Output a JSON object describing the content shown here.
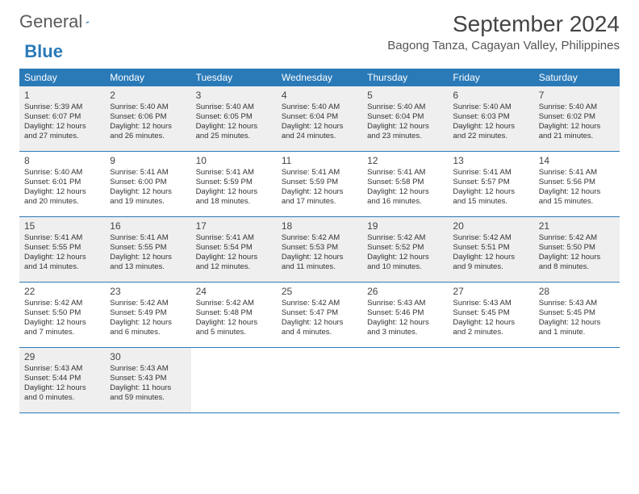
{
  "logo": {
    "text_general": "General",
    "text_blue": "Blue"
  },
  "title": "September 2024",
  "location": "Bagong Tanza, Cagayan Valley, Philippines",
  "colors": {
    "header_bg": "#2a7ab8",
    "header_text": "#ffffff",
    "shaded_bg": "#efefef",
    "border": "#2a7ab8",
    "text": "#333333"
  },
  "day_headers": [
    "Sunday",
    "Monday",
    "Tuesday",
    "Wednesday",
    "Thursday",
    "Friday",
    "Saturday"
  ],
  "weeks": [
    {
      "shaded": true,
      "days": [
        {
          "num": "1",
          "sunrise": "Sunrise: 5:39 AM",
          "sunset": "Sunset: 6:07 PM",
          "day1": "Daylight: 12 hours",
          "day2": "and 27 minutes."
        },
        {
          "num": "2",
          "sunrise": "Sunrise: 5:40 AM",
          "sunset": "Sunset: 6:06 PM",
          "day1": "Daylight: 12 hours",
          "day2": "and 26 minutes."
        },
        {
          "num": "3",
          "sunrise": "Sunrise: 5:40 AM",
          "sunset": "Sunset: 6:05 PM",
          "day1": "Daylight: 12 hours",
          "day2": "and 25 minutes."
        },
        {
          "num": "4",
          "sunrise": "Sunrise: 5:40 AM",
          "sunset": "Sunset: 6:04 PM",
          "day1": "Daylight: 12 hours",
          "day2": "and 24 minutes."
        },
        {
          "num": "5",
          "sunrise": "Sunrise: 5:40 AM",
          "sunset": "Sunset: 6:04 PM",
          "day1": "Daylight: 12 hours",
          "day2": "and 23 minutes."
        },
        {
          "num": "6",
          "sunrise": "Sunrise: 5:40 AM",
          "sunset": "Sunset: 6:03 PM",
          "day1": "Daylight: 12 hours",
          "day2": "and 22 minutes."
        },
        {
          "num": "7",
          "sunrise": "Sunrise: 5:40 AM",
          "sunset": "Sunset: 6:02 PM",
          "day1": "Daylight: 12 hours",
          "day2": "and 21 minutes."
        }
      ]
    },
    {
      "shaded": false,
      "days": [
        {
          "num": "8",
          "sunrise": "Sunrise: 5:40 AM",
          "sunset": "Sunset: 6:01 PM",
          "day1": "Daylight: 12 hours",
          "day2": "and 20 minutes."
        },
        {
          "num": "9",
          "sunrise": "Sunrise: 5:41 AM",
          "sunset": "Sunset: 6:00 PM",
          "day1": "Daylight: 12 hours",
          "day2": "and 19 minutes."
        },
        {
          "num": "10",
          "sunrise": "Sunrise: 5:41 AM",
          "sunset": "Sunset: 5:59 PM",
          "day1": "Daylight: 12 hours",
          "day2": "and 18 minutes."
        },
        {
          "num": "11",
          "sunrise": "Sunrise: 5:41 AM",
          "sunset": "Sunset: 5:59 PM",
          "day1": "Daylight: 12 hours",
          "day2": "and 17 minutes."
        },
        {
          "num": "12",
          "sunrise": "Sunrise: 5:41 AM",
          "sunset": "Sunset: 5:58 PM",
          "day1": "Daylight: 12 hours",
          "day2": "and 16 minutes."
        },
        {
          "num": "13",
          "sunrise": "Sunrise: 5:41 AM",
          "sunset": "Sunset: 5:57 PM",
          "day1": "Daylight: 12 hours",
          "day2": "and 15 minutes."
        },
        {
          "num": "14",
          "sunrise": "Sunrise: 5:41 AM",
          "sunset": "Sunset: 5:56 PM",
          "day1": "Daylight: 12 hours",
          "day2": "and 15 minutes."
        }
      ]
    },
    {
      "shaded": true,
      "days": [
        {
          "num": "15",
          "sunrise": "Sunrise: 5:41 AM",
          "sunset": "Sunset: 5:55 PM",
          "day1": "Daylight: 12 hours",
          "day2": "and 14 minutes."
        },
        {
          "num": "16",
          "sunrise": "Sunrise: 5:41 AM",
          "sunset": "Sunset: 5:55 PM",
          "day1": "Daylight: 12 hours",
          "day2": "and 13 minutes."
        },
        {
          "num": "17",
          "sunrise": "Sunrise: 5:41 AM",
          "sunset": "Sunset: 5:54 PM",
          "day1": "Daylight: 12 hours",
          "day2": "and 12 minutes."
        },
        {
          "num": "18",
          "sunrise": "Sunrise: 5:42 AM",
          "sunset": "Sunset: 5:53 PM",
          "day1": "Daylight: 12 hours",
          "day2": "and 11 minutes."
        },
        {
          "num": "19",
          "sunrise": "Sunrise: 5:42 AM",
          "sunset": "Sunset: 5:52 PM",
          "day1": "Daylight: 12 hours",
          "day2": "and 10 minutes."
        },
        {
          "num": "20",
          "sunrise": "Sunrise: 5:42 AM",
          "sunset": "Sunset: 5:51 PM",
          "day1": "Daylight: 12 hours",
          "day2": "and 9 minutes."
        },
        {
          "num": "21",
          "sunrise": "Sunrise: 5:42 AM",
          "sunset": "Sunset: 5:50 PM",
          "day1": "Daylight: 12 hours",
          "day2": "and 8 minutes."
        }
      ]
    },
    {
      "shaded": false,
      "days": [
        {
          "num": "22",
          "sunrise": "Sunrise: 5:42 AM",
          "sunset": "Sunset: 5:50 PM",
          "day1": "Daylight: 12 hours",
          "day2": "and 7 minutes."
        },
        {
          "num": "23",
          "sunrise": "Sunrise: 5:42 AM",
          "sunset": "Sunset: 5:49 PM",
          "day1": "Daylight: 12 hours",
          "day2": "and 6 minutes."
        },
        {
          "num": "24",
          "sunrise": "Sunrise: 5:42 AM",
          "sunset": "Sunset: 5:48 PM",
          "day1": "Daylight: 12 hours",
          "day2": "and 5 minutes."
        },
        {
          "num": "25",
          "sunrise": "Sunrise: 5:42 AM",
          "sunset": "Sunset: 5:47 PM",
          "day1": "Daylight: 12 hours",
          "day2": "and 4 minutes."
        },
        {
          "num": "26",
          "sunrise": "Sunrise: 5:43 AM",
          "sunset": "Sunset: 5:46 PM",
          "day1": "Daylight: 12 hours",
          "day2": "and 3 minutes."
        },
        {
          "num": "27",
          "sunrise": "Sunrise: 5:43 AM",
          "sunset": "Sunset: 5:45 PM",
          "day1": "Daylight: 12 hours",
          "day2": "and 2 minutes."
        },
        {
          "num": "28",
          "sunrise": "Sunrise: 5:43 AM",
          "sunset": "Sunset: 5:45 PM",
          "day1": "Daylight: 12 hours",
          "day2": "and 1 minute."
        }
      ]
    },
    {
      "shaded": true,
      "days": [
        {
          "num": "29",
          "sunrise": "Sunrise: 5:43 AM",
          "sunset": "Sunset: 5:44 PM",
          "day1": "Daylight: 12 hours",
          "day2": "and 0 minutes."
        },
        {
          "num": "30",
          "sunrise": "Sunrise: 5:43 AM",
          "sunset": "Sunset: 5:43 PM",
          "day1": "Daylight: 11 hours",
          "day2": "and 59 minutes."
        },
        {
          "num": "",
          "sunrise": "",
          "sunset": "",
          "day1": "",
          "day2": ""
        },
        {
          "num": "",
          "sunrise": "",
          "sunset": "",
          "day1": "",
          "day2": ""
        },
        {
          "num": "",
          "sunrise": "",
          "sunset": "",
          "day1": "",
          "day2": ""
        },
        {
          "num": "",
          "sunrise": "",
          "sunset": "",
          "day1": "",
          "day2": ""
        },
        {
          "num": "",
          "sunrise": "",
          "sunset": "",
          "day1": "",
          "day2": ""
        }
      ]
    }
  ]
}
